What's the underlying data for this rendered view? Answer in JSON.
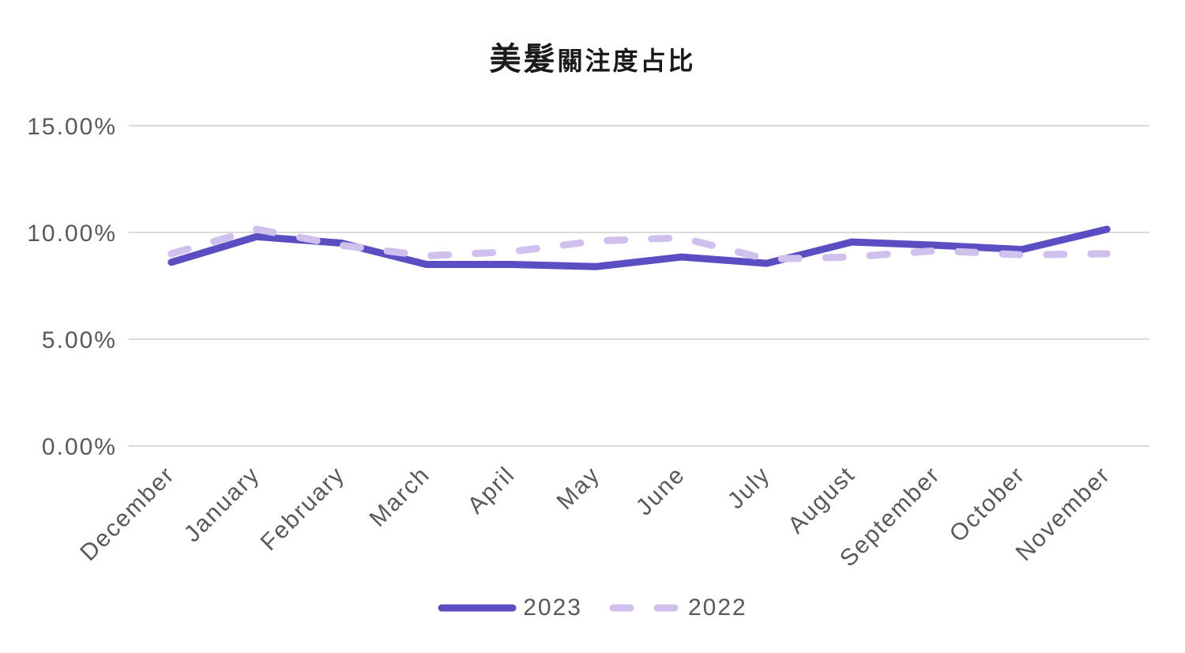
{
  "chart_data": {
    "type": "line",
    "title": "美髮關注度占比",
    "title_primary": "美髮",
    "title_secondary": "關注度占比",
    "categories": [
      "December",
      "January",
      "February",
      "March",
      "April",
      "May",
      "June",
      "July",
      "August",
      "September",
      "October",
      "November"
    ],
    "series": [
      {
        "name": "2023",
        "line_style": "solid",
        "color": "#5A4EC2",
        "values": [
          8.6,
          9.8,
          9.5,
          8.5,
          8.5,
          8.4,
          8.85,
          8.55,
          9.55,
          9.4,
          9.2,
          10.15
        ]
      },
      {
        "name": "2022",
        "line_style": "dashed",
        "color": "#CFC0EE",
        "values": [
          9.0,
          10.15,
          9.4,
          8.9,
          9.1,
          9.6,
          9.75,
          8.75,
          8.85,
          9.15,
          8.95,
          9.0
        ]
      }
    ],
    "yticks": [
      {
        "value": 0,
        "label": "0.00%"
      },
      {
        "value": 5,
        "label": "5.00%"
      },
      {
        "value": 10,
        "label": "10.00%"
      },
      {
        "value": 15,
        "label": "15.00%"
      }
    ],
    "ylim": [
      0,
      15
    ],
    "xlabel": "",
    "ylabel": "",
    "grid": true,
    "legend_position": "bottom",
    "value_unit": "percent"
  },
  "colors": {
    "background": "#FFFFFF",
    "grid": "#D9D9D9",
    "axis_text": "#595959",
    "title_text": "#1A1A1A",
    "legend_text": "#595959"
  }
}
